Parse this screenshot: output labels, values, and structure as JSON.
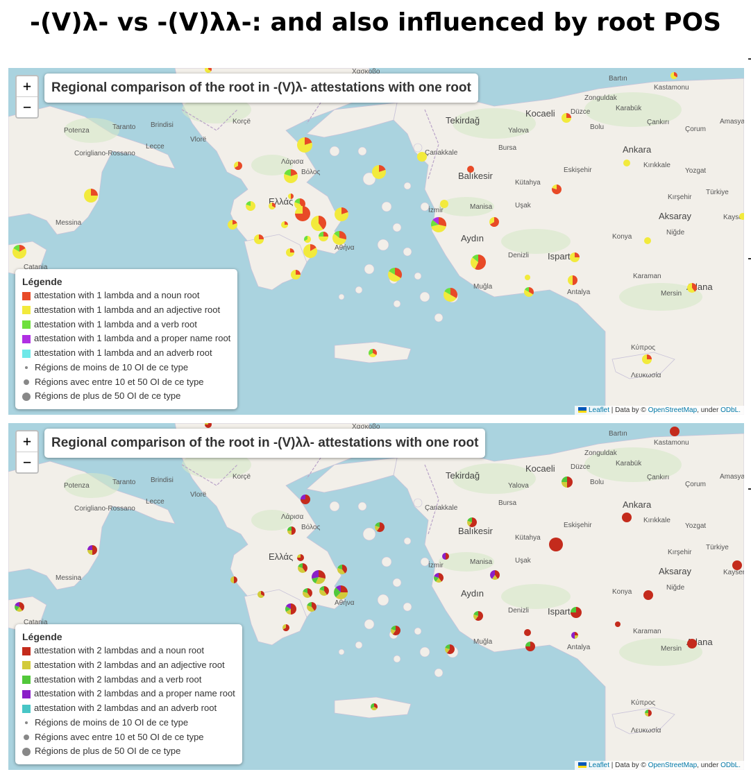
{
  "title": "-(V)λ- vs -(V)λλ-: and also influenced by root POS",
  "colors": {
    "sea": "#aad3df",
    "land": "#f2efe9",
    "forest": "#d6e8c8",
    "noun1": "#e84a27",
    "adj1": "#f2ea3c",
    "verb1": "#6ee03c",
    "proper1": "#b02fe3",
    "adverb1": "#6fe8e8",
    "noun2": "#c42b1c",
    "adj2": "#d2cb3a",
    "verb2": "#52c83a",
    "proper2": "#8a1fc8",
    "adverb2": "#48c6c6",
    "size_dot": "#888888"
  },
  "zoom": {
    "in_label": "+",
    "out_label": "−"
  },
  "attribution": {
    "leaflet": "Leaflet",
    "sep": " | Data by © ",
    "osm": "OpenStreetMap",
    "under": ", under ",
    "odbl": "ODbL."
  },
  "places": [
    {
      "name": "Tekirdağ",
      "big": true
    },
    {
      "name": "Kocaeli",
      "big": true
    },
    {
      "name": "Ankara",
      "big": true
    },
    {
      "name": "Balıkesir",
      "big": true
    },
    {
      "name": "Aydın",
      "big": true
    },
    {
      "name": "Isparta",
      "big": true
    },
    {
      "name": "Aksaray",
      "big": true
    },
    {
      "name": "Adana",
      "big": true
    },
    {
      "name": "Türkiye",
      "big": false
    },
    {
      "name": "Ελλάς",
      "big": true
    },
    {
      "name": "Αθήνα",
      "big": false
    },
    {
      "name": "Κύπρος",
      "big": false
    },
    {
      "name": "Potenza",
      "big": false
    },
    {
      "name": "Taranto",
      "big": false
    },
    {
      "name": "Brindisi",
      "big": false
    },
    {
      "name": "Messina",
      "big": false
    },
    {
      "name": "Korçë",
      "big": false
    },
    {
      "name": "Vlorë",
      "big": false
    },
    {
      "name": "Λάρισα",
      "big": false
    },
    {
      "name": "Βόλος",
      "big": false
    },
    {
      "name": "Bolu",
      "big": false
    },
    {
      "name": "Yalova",
      "big": false
    },
    {
      "name": "Bursa",
      "big": false
    },
    {
      "name": "Eskişehir",
      "big": false
    },
    {
      "name": "Kütahya",
      "big": false
    },
    {
      "name": "Uşak",
      "big": false
    },
    {
      "name": "Manisa",
      "big": false
    },
    {
      "name": "İzmir",
      "big": false
    },
    {
      "name": "Muğla",
      "big": false
    },
    {
      "name": "Denizli",
      "big": false
    },
    {
      "name": "Antalya",
      "big": false
    },
    {
      "name": "Karaman",
      "big": false
    },
    {
      "name": "Mersin",
      "big": false
    },
    {
      "name": "Konya",
      "big": false
    },
    {
      "name": "Niğde",
      "big": false
    },
    {
      "name": "Kırşehir",
      "big": false
    },
    {
      "name": "Kırıkkale",
      "big": false
    },
    {
      "name": "Çankırı",
      "big": false
    },
    {
      "name": "Karabük",
      "big": false
    },
    {
      "name": "Düzce",
      "big": false
    },
    {
      "name": "Zonguldak",
      "big": false
    },
    {
      "name": "Bartın",
      "big": false
    },
    {
      "name": "Kastamonu",
      "big": false
    },
    {
      "name": "Yozgat",
      "big": false
    },
    {
      "name": "Çorum",
      "big": false
    },
    {
      "name": "Amasya",
      "big": false
    },
    {
      "name": "Kayseri",
      "big": false
    },
    {
      "name": "Çanakkale",
      "big": false
    },
    {
      "name": "Lecce",
      "big": false
    },
    {
      "name": "Corigliano-Rossano",
      "big": false
    },
    {
      "name": "Catania",
      "big": false
    },
    {
      "name": "Χασκοβο",
      "big": false
    },
    {
      "name": "Λευκωσία",
      "big": false
    }
  ],
  "maps": [
    {
      "title": "Regional comparison of the root in -(V)λ- attestations with one root",
      "legend": {
        "heading": "Légende",
        "items": [
          {
            "label": "attestation with 1 lambda and a noun root",
            "color": "#e84a27"
          },
          {
            "label": "attestation with 1 lambda and an adjective root",
            "color": "#f2ea3c"
          },
          {
            "label": "attestation with 1 lambda and a verb root",
            "color": "#6ee03c"
          },
          {
            "label": "attestation with 1 lambda and a proper name root",
            "color": "#b02fe3"
          },
          {
            "label": "attestation with 1 lambda and an adverb root",
            "color": "#6fe8e8"
          }
        ],
        "sizes": [
          {
            "label": "Régions de moins de 10 OI de ce type"
          },
          {
            "label": "Régions avec entre 10 et 50 OI de ce type"
          },
          {
            "label": "Régions de plus de 50 OI de ce type"
          }
        ]
      }
    },
    {
      "title": "Regional comparison of the root in -(V)λλ- attestations with one root",
      "legend": {
        "heading": "Légende",
        "items": [
          {
            "label": "attestation with 2 lambdas and a noun root",
            "color": "#c42b1c"
          },
          {
            "label": "attestation with 2 lambdas and an adjective root",
            "color": "#d2cb3a"
          },
          {
            "label": "attestation with 2 lambdas and a verb root",
            "color": "#52c83a"
          },
          {
            "label": "attestation with 2 lambdas and a proper name root",
            "color": "#8a1fc8"
          },
          {
            "label": "attestation with 2 lambdas and an adverb root",
            "color": "#48c6c6"
          }
        ],
        "sizes": [
          {
            "label": "Régions de moins de 10 OI de ce type"
          },
          {
            "label": "Régions avec entre 10 et 50 OI de ce type"
          },
          {
            "label": "Régions de plus de 50 OI de ce type"
          }
        ]
      }
    }
  ]
}
